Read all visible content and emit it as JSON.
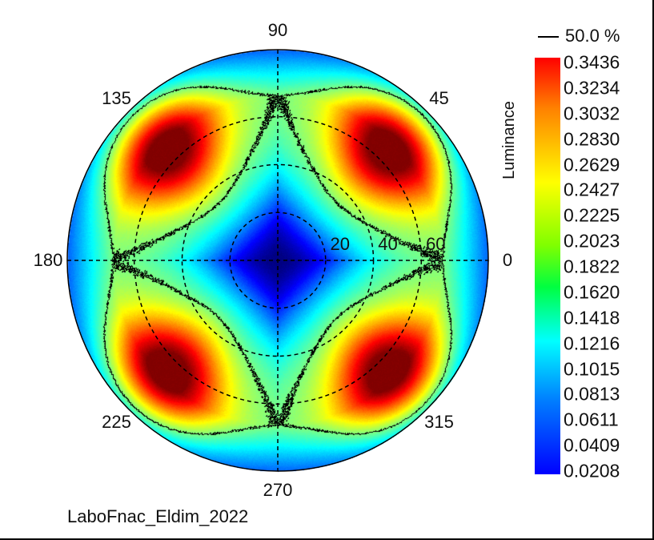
{
  "chart_data": {
    "type": "heatmap",
    "subtype": "polar-conoscopic",
    "title": "LaboFnac_Eldim_2022",
    "colorbar_label": "Luminance",
    "colorbar_range": [
      0.0208,
      0.3436
    ],
    "colorbar_ticks": [
      "0.3436",
      "0.3234",
      "0.3032",
      "0.2830",
      "0.2629",
      "0.2427",
      "0.2225",
      "0.2023",
      "0.1822",
      "0.1620",
      "0.1418",
      "0.1216",
      "0.1015",
      "0.0813",
      "0.0611",
      "0.0409",
      "0.0208"
    ],
    "contour_label": "50.0 %",
    "contour_level": 0.182,
    "azimuth_labels": [
      {
        "angle": 0,
        "text": "0"
      },
      {
        "angle": 45,
        "text": "45"
      },
      {
        "angle": 90,
        "text": "90"
      },
      {
        "angle": 135,
        "text": "135"
      },
      {
        "angle": 180,
        "text": "180"
      },
      {
        "angle": 225,
        "text": "225"
      },
      {
        "angle": 270,
        "text": "270"
      },
      {
        "angle": 315,
        "text": "315"
      }
    ],
    "inclination_rings": [
      {
        "value": 20,
        "text": "20"
      },
      {
        "value": 40,
        "text": "40"
      },
      {
        "value": 60,
        "text": "60"
      }
    ],
    "inclination_max": 88,
    "lobes": [
      {
        "azimuth": 45,
        "inclination": 66,
        "peak": 0.34
      },
      {
        "azimuth": 135,
        "inclination": 66,
        "peak": 0.34
      },
      {
        "azimuth": 225,
        "inclination": 66,
        "peak": 0.34
      },
      {
        "azimuth": 315,
        "inclination": 66,
        "peak": 0.34
      }
    ],
    "center_value": 0.0208
  }
}
